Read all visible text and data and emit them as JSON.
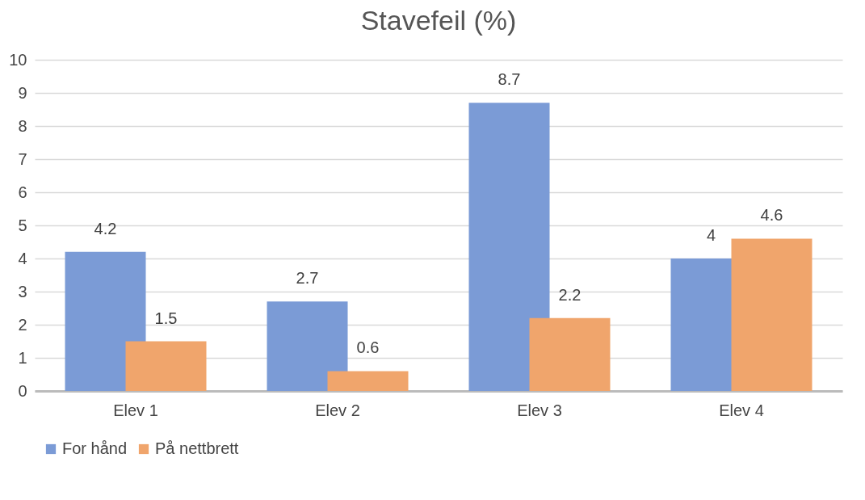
{
  "chart_data": {
    "type": "bar",
    "title": "Stavefeil (%)",
    "categories": [
      "Elev 1",
      "Elev 2",
      "Elev 3",
      "Elev 4"
    ],
    "series": [
      {
        "name": "For hånd",
        "color": "#7b9bd6",
        "values": [
          4.2,
          2.7,
          8.7,
          4
        ]
      },
      {
        "name": "På nettbrett",
        "color": "#f0a56c",
        "values": [
          1.5,
          0.6,
          2.2,
          4.6
        ]
      }
    ],
    "ylim": [
      0,
      10
    ],
    "yticks": [
      0,
      1,
      2,
      3,
      4,
      5,
      6,
      7,
      8,
      9,
      10
    ],
    "grid": "y",
    "legend": "bottom",
    "data_labels": true
  }
}
